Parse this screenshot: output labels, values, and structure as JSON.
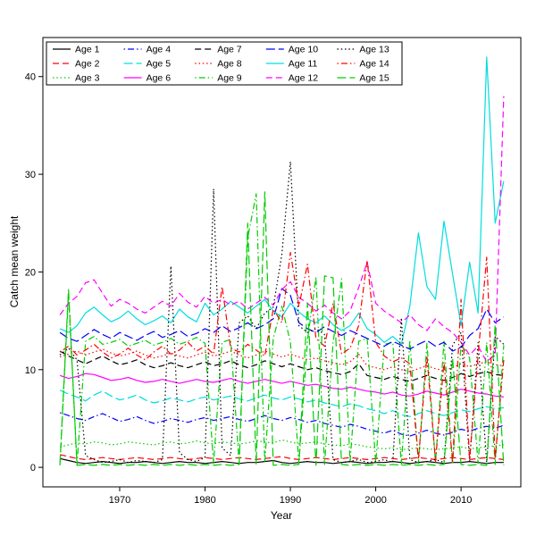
{
  "chart_data": {
    "type": "line",
    "title": "",
    "xlabel": "Year",
    "ylabel": "Catch mean weight",
    "axes": {
      "x_ticks": [
        1970,
        1980,
        1990,
        2000,
        2010
      ],
      "y_ticks": [
        0,
        10,
        20,
        30,
        40
      ],
      "x_display_range": [
        1961,
        2017
      ],
      "y_display_range": [
        -2,
        44
      ],
      "xlim": [
        1963,
        2015
      ],
      "ylim": [
        0,
        42
      ],
      "grid": false
    },
    "legend": {
      "position": "top-left",
      "ncol": 5,
      "nrow": 3,
      "border": true,
      "fill_order": "column-major"
    },
    "palette": [
      "#000000",
      "#FF0000",
      "#00CC00",
      "#0000FF",
      "#00DDDD",
      "#FF00FF"
    ],
    "x": [
      1963,
      1964,
      1965,
      1966,
      1967,
      1968,
      1969,
      1970,
      1971,
      1972,
      1973,
      1974,
      1975,
      1976,
      1977,
      1978,
      1979,
      1980,
      1981,
      1982,
      1983,
      1984,
      1985,
      1986,
      1987,
      1988,
      1989,
      1990,
      1991,
      1992,
      1993,
      1994,
      1995,
      1996,
      1997,
      1998,
      1999,
      2000,
      2001,
      2002,
      2003,
      2004,
      2005,
      2006,
      2007,
      2008,
      2009,
      2010,
      2011,
      2012,
      2013,
      2014,
      2015
    ],
    "series": [
      {
        "name": "Age 1",
        "color": "#000000",
        "linetype": "solid",
        "values": [
          0.9,
          0.7,
          0.5,
          0.4,
          0.5,
          0.6,
          0.5,
          0.4,
          0.5,
          0.5,
          0.6,
          0.5,
          0.4,
          0.5,
          0.6,
          0.5,
          0.5,
          0.4,
          0.5,
          0.6,
          0.5,
          0.4,
          0.5,
          0.5,
          0.6,
          0.7,
          0.5,
          0.4,
          0.5,
          0.6,
          0.5,
          0.5,
          0.4,
          0.5,
          0.6,
          0.5,
          0.4,
          0.5,
          0.5,
          0.6,
          0.5,
          0.4,
          0.5,
          0.6,
          0.5,
          0.4,
          0.5,
          0.5,
          0.6,
          0.5,
          0.4,
          0.5,
          0.5
        ]
      },
      {
        "name": "Age 2",
        "color": "#FF0000",
        "linetype": "dashed",
        "values": [
          1.3,
          1.1,
          0.9,
          0.8,
          0.9,
          1.0,
          0.9,
          0.8,
          0.9,
          1.0,
          0.9,
          0.8,
          0.9,
          1.0,
          0.9,
          0.8,
          0.9,
          1.0,
          0.9,
          0.8,
          0.9,
          1.0,
          0.9,
          0.8,
          0.9,
          1.0,
          1.1,
          0.9,
          0.8,
          0.9,
          1.0,
          0.9,
          0.8,
          0.9,
          1.0,
          0.9,
          0.8,
          0.9,
          1.0,
          0.9,
          0.8,
          0.9,
          1.0,
          0.9,
          0.8,
          0.9,
          1.0,
          0.9,
          0.8,
          0.9,
          1.0,
          0.9,
          0.8
        ]
      },
      {
        "name": "Age 3",
        "color": "#00CC00",
        "linetype": "dotted",
        "values": [
          2.1,
          2.3,
          2.5,
          2.4,
          2.6,
          2.5,
          2.3,
          2.4,
          2.6,
          2.5,
          2.4,
          2.3,
          2.5,
          2.6,
          2.4,
          2.5,
          2.7,
          2.5,
          2.4,
          2.6,
          2.5,
          2.4,
          2.5,
          2.7,
          2.6,
          2.5,
          2.8,
          2.6,
          2.4,
          2.5,
          2.6,
          2.4,
          2.3,
          2.2,
          2.4,
          2.3,
          2.1,
          2.0,
          1.9,
          2.0,
          1.8,
          1.9,
          2.0,
          1.9,
          1.8,
          1.9,
          2.0,
          2.1,
          1.9,
          2.0,
          2.1,
          2.2,
          2.3
        ]
      },
      {
        "name": "Age 4",
        "color": "#0000FF",
        "linetype": "dotdash",
        "values": [
          5.6,
          5.3,
          5.0,
          4.8,
          5.2,
          5.5,
          5.1,
          4.7,
          4.9,
          5.2,
          4.8,
          4.5,
          4.7,
          5.0,
          4.8,
          4.6,
          4.9,
          5.1,
          4.8,
          5.0,
          5.2,
          4.9,
          4.7,
          5.0,
          5.3,
          5.0,
          4.8,
          5.1,
          4.9,
          4.6,
          4.8,
          4.5,
          4.3,
          4.1,
          4.4,
          4.2,
          3.9,
          3.7,
          3.5,
          3.8,
          3.4,
          3.2,
          3.5,
          3.8,
          3.5,
          3.3,
          3.6,
          3.9,
          3.7,
          4.0,
          4.2,
          4.0,
          4.3
        ]
      },
      {
        "name": "Age 5",
        "color": "#00DDDD",
        "linetype": "longdash",
        "values": [
          7.9,
          7.5,
          7.2,
          6.8,
          7.4,
          7.8,
          7.3,
          6.9,
          7.1,
          7.4,
          6.9,
          6.6,
          6.8,
          7.1,
          6.9,
          6.7,
          7.0,
          7.2,
          6.9,
          7.1,
          7.3,
          7.0,
          6.8,
          7.1,
          7.4,
          7.1,
          6.9,
          7.2,
          7.0,
          6.7,
          6.9,
          6.6,
          6.4,
          6.2,
          6.5,
          6.3,
          6.0,
          5.8,
          5.5,
          5.8,
          5.4,
          5.2,
          5.5,
          5.8,
          5.5,
          5.3,
          5.6,
          5.9,
          5.7,
          6.0,
          6.2,
          6.0,
          6.1
        ]
      },
      {
        "name": "Age 6",
        "color": "#FF00FF",
        "linetype": "solid",
        "values": [
          9.4,
          9.1,
          9.3,
          9.6,
          9.5,
          9.2,
          8.9,
          9.0,
          9.2,
          8.9,
          8.7,
          8.8,
          9.0,
          8.8,
          8.6,
          8.8,
          9.0,
          8.8,
          8.7,
          8.9,
          9.1,
          8.8,
          8.6,
          8.8,
          9.0,
          8.8,
          8.6,
          8.8,
          8.6,
          8.4,
          8.5,
          8.3,
          8.1,
          8.0,
          8.2,
          8.0,
          7.8,
          7.7,
          7.5,
          7.7,
          7.4,
          7.3,
          7.5,
          7.8,
          7.6,
          7.4,
          7.7,
          8.0,
          7.8,
          7.6,
          7.5,
          7.3,
          7.2
        ]
      },
      {
        "name": "Age 7",
        "color": "#000000",
        "linetype": "dashed",
        "values": [
          11.9,
          11.4,
          11.0,
          10.6,
          11.0,
          11.4,
          10.9,
          10.5,
          10.7,
          11.0,
          10.5,
          10.2,
          10.4,
          10.7,
          10.4,
          10.2,
          10.5,
          10.8,
          10.4,
          10.6,
          10.9,
          10.5,
          10.2,
          10.5,
          10.9,
          10.6,
          10.3,
          10.6,
          10.3,
          10.0,
          10.2,
          9.9,
          9.7,
          9.5,
          9.8,
          10.6,
          9.4,
          9.2,
          9.0,
          9.3,
          9.0,
          8.8,
          9.1,
          9.4,
          9.1,
          8.9,
          9.2,
          9.6,
          9.3,
          9.6,
          9.8,
          9.5,
          9.4
        ]
      },
      {
        "name": "Age 8",
        "color": "#FF0000",
        "linetype": "dotted",
        "values": [
          11.3,
          11.6,
          11.9,
          11.5,
          11.8,
          12.1,
          11.7,
          11.4,
          11.6,
          11.9,
          11.5,
          11.2,
          11.4,
          11.7,
          11.4,
          11.2,
          11.5,
          11.8,
          11.4,
          11.6,
          11.9,
          11.5,
          11.2,
          11.5,
          11.9,
          11.6,
          11.3,
          11.6,
          11.3,
          11.0,
          11.2,
          10.9,
          10.7,
          10.5,
          10.8,
          11.6,
          10.4,
          10.2,
          10.0,
          10.3,
          10.0,
          9.8,
          10.1,
          10.4,
          10.1,
          9.9,
          10.2,
          10.6,
          10.3,
          10.6,
          10.8,
          10.5,
          10.4
        ]
      },
      {
        "name": "Age 9",
        "color": "#00CC00",
        "linetype": "dotdash",
        "values": [
          0.2,
          17.8,
          0.3,
          12.9,
          13.4,
          12.6,
          12.8,
          13.1,
          12.4,
          12.7,
          13.0,
          12.5,
          12.8,
          13.2,
          12.6,
          12.9,
          13.3,
          12.7,
          0.4,
          12.8,
          13.1,
          0.3,
          23.5,
          28.0,
          0.5,
          13.2,
          16.5,
          12.8,
          0.4,
          13.0,
          19.5,
          0.3,
          12.7,
          19.3,
          0.5,
          12.9,
          13.2,
          0.4,
          12.6,
          12.8,
          0.3,
          13.0,
          0.4,
          12.7,
          0.5,
          12.9,
          0.3,
          12.6,
          11.2,
          0.4,
          12.8,
          0.3,
          12.5
        ]
      },
      {
        "name": "Age 10",
        "color": "#0000FF",
        "linetype": "longdash",
        "values": [
          13.8,
          13.2,
          12.9,
          13.5,
          14.1,
          13.6,
          13.2,
          13.8,
          13.4,
          13.0,
          13.5,
          13.9,
          13.3,
          13.6,
          14.0,
          13.4,
          13.7,
          14.2,
          13.8,
          14.5,
          13.9,
          14.3,
          14.8,
          14.2,
          14.6,
          15.2,
          18.3,
          17.6,
          14.8,
          14.2,
          13.8,
          14.4,
          13.9,
          13.5,
          14.0,
          13.6,
          13.2,
          12.8,
          12.4,
          12.9,
          12.5,
          12.1,
          12.6,
          13.0,
          12.4,
          12.8,
          11.9,
          12.3,
          13.5,
          14.2,
          16.2,
          14.8,
          15.4
        ]
      },
      {
        "name": "Age 11",
        "color": "#00DDDD",
        "linetype": "solid",
        "values": [
          14.2,
          13.8,
          14.5,
          15.8,
          16.4,
          15.6,
          14.9,
          15.3,
          16.0,
          15.2,
          14.6,
          15.0,
          15.5,
          14.8,
          16.2,
          15.4,
          14.9,
          16.8,
          15.6,
          16.2,
          17.0,
          16.4,
          15.8,
          16.5,
          17.2,
          16.0,
          15.4,
          16.8,
          15.9,
          15.2,
          14.8,
          15.5,
          14.6,
          14.0,
          14.5,
          15.8,
          14.2,
          13.6,
          12.8,
          13.4,
          12.6,
          16.5,
          24.0,
          18.5,
          17.2,
          25.2,
          19.8,
          14.5,
          21.0,
          15.8,
          42.0,
          25.0,
          29.3
        ]
      },
      {
        "name": "Age 12",
        "color": "#FF00FF",
        "linetype": "dashed",
        "values": [
          15.6,
          16.8,
          17.5,
          18.9,
          19.2,
          17.8,
          16.5,
          17.2,
          16.8,
          16.2,
          15.8,
          16.4,
          17.0,
          16.5,
          17.8,
          16.9,
          16.4,
          17.5,
          16.8,
          17.2,
          16.6,
          17.0,
          16.2,
          16.8,
          17.4,
          16.6,
          18.2,
          19.0,
          17.4,
          16.8,
          16.0,
          16.6,
          15.8,
          15.2,
          16.0,
          18.4,
          21.0,
          16.8,
          16.0,
          15.4,
          14.8,
          15.6,
          14.6,
          14.0,
          15.2,
          14.4,
          13.8,
          12.8,
          11.5,
          12.4,
          10.8,
          11.6,
          38.0
        ]
      },
      {
        "name": "Age 13",
        "color": "#000000",
        "linetype": "dotted",
        "values": [
          11.5,
          12.2,
          11.0,
          1.2,
          0.8,
          0.5,
          0.6,
          0.8,
          0.5,
          0.7,
          0.6,
          0.5,
          0.8,
          20.6,
          1.5,
          0.8,
          0.6,
          1.0,
          28.5,
          2.0,
          1.2,
          14.8,
          15.5,
          14.2,
          15.8,
          16.4,
          21.8,
          31.3,
          14.5,
          13.8,
          14.2,
          13.6,
          0.8,
          0.5,
          0.6,
          0.8,
          0.5,
          0.6,
          0.8,
          0.5,
          15.3,
          0.8,
          0.5,
          0.6,
          0.8,
          0.5,
          12.5,
          13.8,
          0.6,
          12.8,
          0.5,
          13.4,
          12.6
        ]
      },
      {
        "name": "Age 14",
        "color": "#FF0000",
        "linetype": "dotdash",
        "values": [
          11.8,
          12.4,
          11.5,
          12.0,
          12.6,
          11.8,
          11.2,
          11.6,
          12.2,
          11.5,
          11.0,
          11.8,
          12.4,
          11.6,
          12.0,
          12.8,
          11.9,
          12.4,
          11.6,
          18.5,
          12.2,
          11.8,
          12.6,
          12.0,
          11.4,
          16.2,
          14.8,
          22.0,
          16.5,
          20.8,
          13.2,
          12.4,
          16.8,
          11.6,
          12.2,
          14.5,
          21.2,
          12.8,
          11.4,
          10.8,
          11.2,
          10.6,
          0.8,
          11.4,
          0.6,
          10.8,
          0.5,
          17.2,
          0.8,
          11.5,
          21.5,
          0.9,
          11.0
        ]
      },
      {
        "name": "Age 15",
        "color": "#00CC00",
        "linetype": "longdash",
        "values": [
          0.3,
          18.2,
          0.2,
          0.3,
          0.2,
          0.3,
          0.2,
          0.3,
          0.2,
          0.3,
          0.2,
          0.3,
          0.2,
          0.3,
          0.2,
          0.3,
          0.2,
          0.3,
          0.2,
          0.3,
          0.2,
          0.3,
          25.0,
          0.3,
          28.2,
          0.2,
          0.3,
          0.2,
          0.3,
          16.8,
          0.2,
          19.6,
          19.4,
          0.3,
          0.2,
          0.3,
          0.2,
          0.3,
          0.2,
          0.3,
          0.2,
          0.3,
          0.2,
          0.3,
          0.2,
          0.3,
          11.2,
          0.3,
          0.2,
          0.3,
          0.2,
          14.6,
          0.2
        ]
      }
    ]
  }
}
